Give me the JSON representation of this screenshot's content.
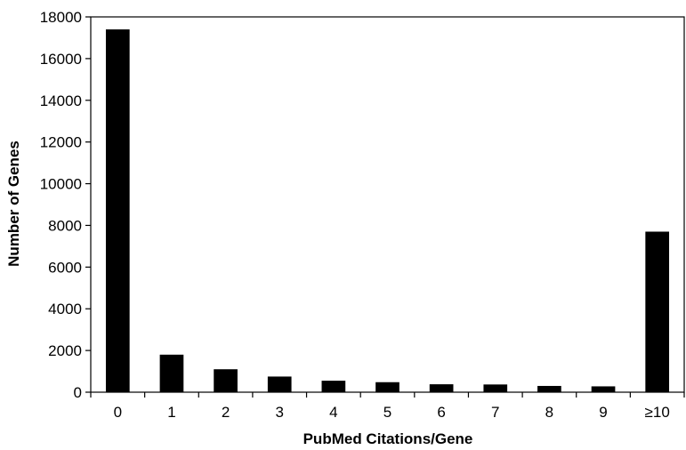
{
  "chart_data": {
    "type": "bar",
    "title": "",
    "xlabel": "PubMed Citations/Gene",
    "ylabel": "Number of Genes",
    "categories": [
      "0",
      "1",
      "2",
      "3",
      "4",
      "5",
      "6",
      "7",
      "8",
      "9",
      "≥10"
    ],
    "values": [
      17400,
      1800,
      1100,
      750,
      550,
      480,
      380,
      370,
      300,
      280,
      7700
    ],
    "ylim": [
      0,
      18000
    ],
    "yticks": [
      "0",
      "2000",
      "4000",
      "6000",
      "8000",
      "10000",
      "12000",
      "14000",
      "16000",
      "18000"
    ],
    "grid": false,
    "legend": "none",
    "bar_color": "#000000"
  }
}
